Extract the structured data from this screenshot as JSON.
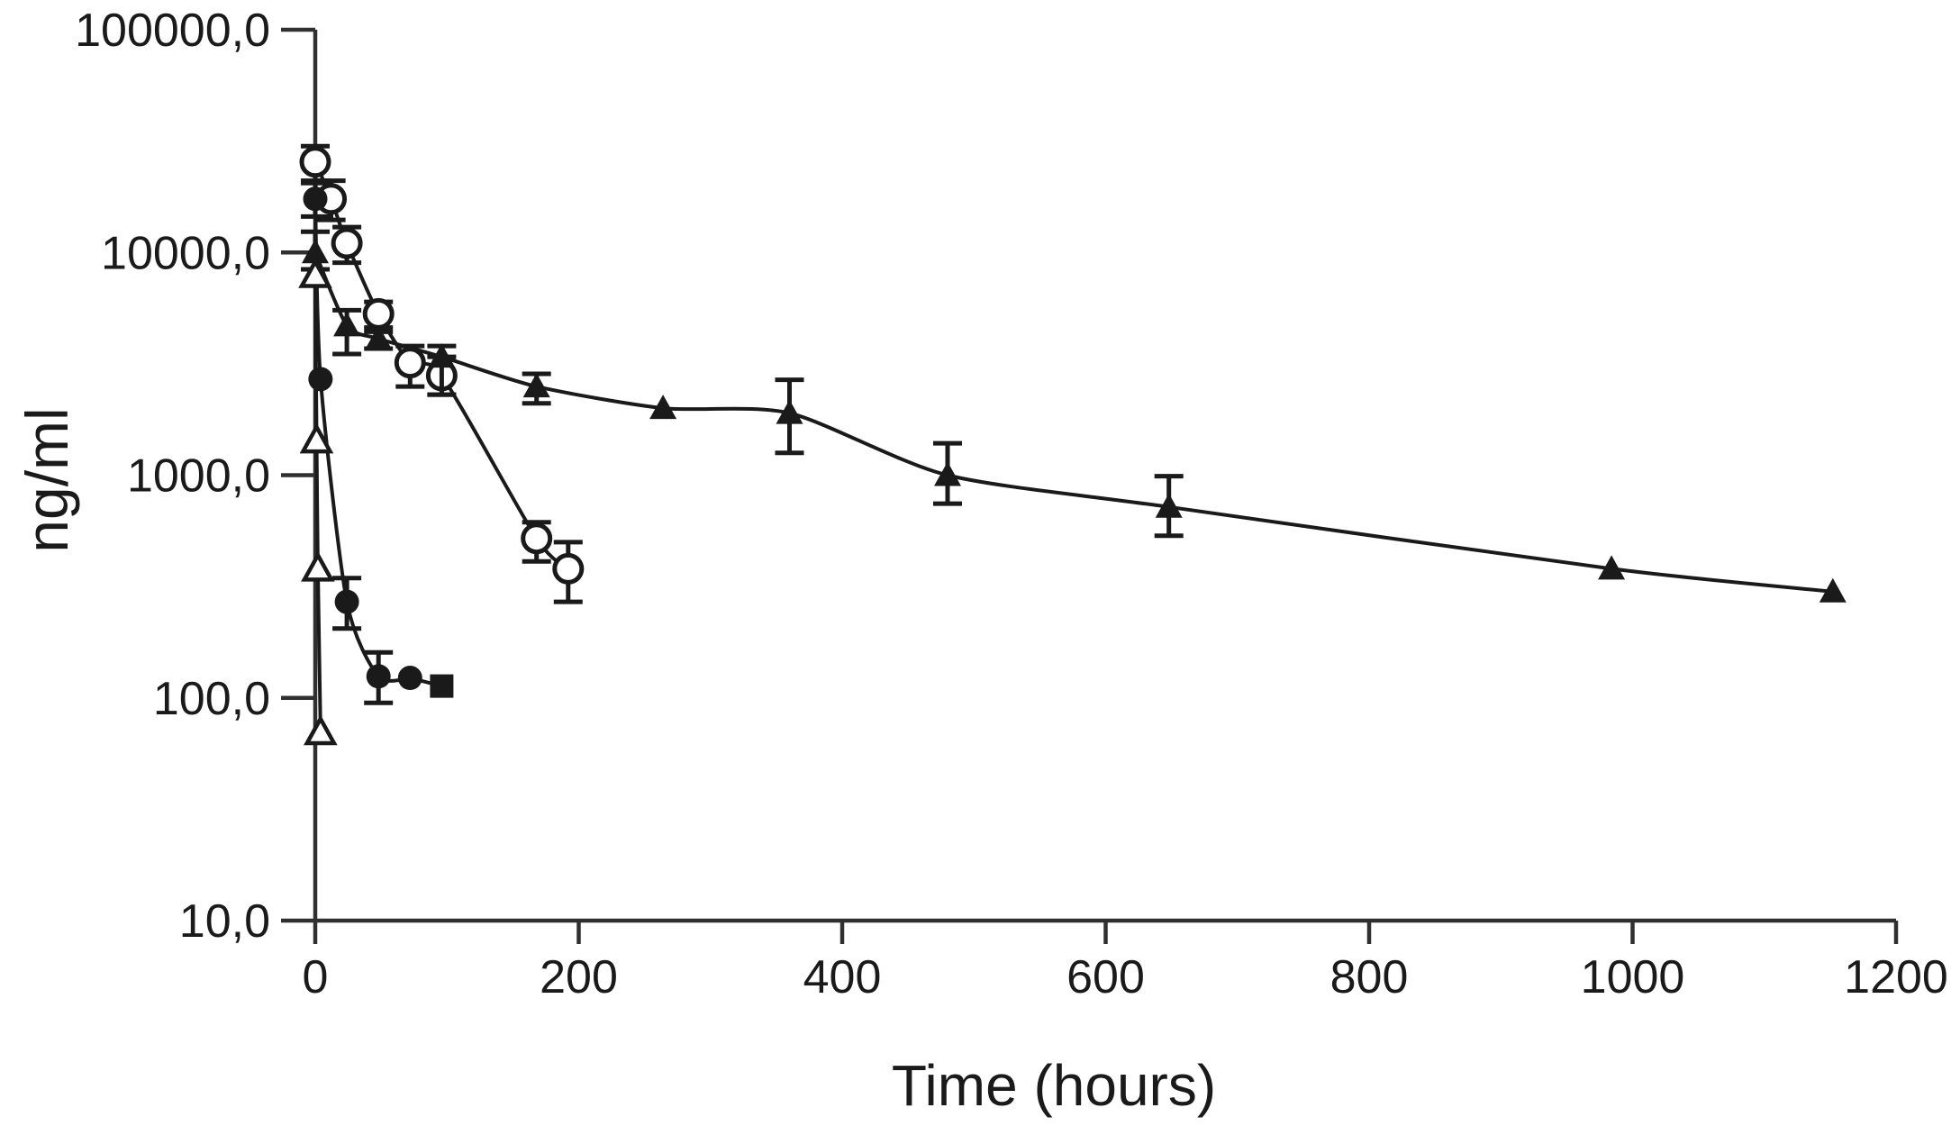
{
  "figure": {
    "title": "",
    "background": "#ffffff",
    "ink_color": "#1a1a1a",
    "axis_color": "#303030"
  },
  "chart_data": {
    "type": "line",
    "title": "",
    "xlabel": "Time (hours)",
    "ylabel": "ng/ml",
    "x_axis": {
      "label": "Time (hours)",
      "scale": "linear",
      "min": 0,
      "max": 1200,
      "ticks": [
        0,
        200,
        400,
        600,
        800,
        1000,
        1200
      ]
    },
    "y_axis": {
      "label": "ng/ml",
      "scale": "log",
      "min": 10,
      "max": 100000,
      "tick_values": [
        100000,
        10000,
        1000,
        100,
        10
      ],
      "tick_labels": [
        "100000,0",
        "10000,0",
        "1000,0",
        "100,0",
        "10,0"
      ]
    },
    "grid": false,
    "legend": "none",
    "series": [
      {
        "name": "open-circle",
        "marker": "circle-open",
        "points": [
          {
            "t": 0,
            "v": 25500,
            "lo": 21000,
            "hi": 30000
          },
          {
            "t": 12,
            "v": 17400,
            "lo": 14000,
            "hi": 21000
          },
          {
            "t": 24,
            "v": 11000,
            "lo": 9000,
            "hi": 13000
          },
          {
            "t": 48,
            "v": 5300,
            "lo": 4400,
            "hi": 6000
          },
          {
            "t": 72,
            "v": 3200,
            "lo": 2500,
            "hi": 3800
          },
          {
            "t": 96,
            "v": 2800,
            "lo": 2300,
            "hi": 3400
          },
          {
            "t": 168,
            "v": 520,
            "lo": 410,
            "hi": 615
          },
          {
            "t": 192,
            "v": 380,
            "lo": 270,
            "hi": 500
          }
        ]
      },
      {
        "name": "filled-circle",
        "marker": "circle-filled",
        "points": [
          {
            "t": 0,
            "v": 17400,
            "lo": 14500,
            "hi": 20500
          },
          {
            "t": 4,
            "v": 2700
          },
          {
            "t": 24,
            "v": 270,
            "lo": 205,
            "hi": 345
          },
          {
            "t": 48,
            "v": 125,
            "lo": 95,
            "hi": 160
          },
          {
            "t": 72,
            "v": 123
          }
        ]
      },
      {
        "name": "filled-square",
        "marker": "square-filled",
        "join_previous": true,
        "points": [
          {
            "t": 96,
            "v": 113
          }
        ]
      },
      {
        "name": "filled-triangle",
        "marker": "triangle-filled",
        "points": [
          {
            "t": 0,
            "v": 10000,
            "lo": 8400,
            "hi": 12400
          },
          {
            "t": 24,
            "v": 4700,
            "lo": 3500,
            "hi": 5500
          },
          {
            "t": 48,
            "v": 4100,
            "lo": 3700,
            "hi": 4600
          },
          {
            "t": 96,
            "v": 3400,
            "lo": 2300,
            "hi": 3800
          },
          {
            "t": 168,
            "v": 2500,
            "lo": 2100,
            "hi": 2850
          },
          {
            "t": 264,
            "v": 2000
          },
          {
            "t": 360,
            "v": 1900,
            "lo": 1260,
            "hi": 2680
          },
          {
            "t": 480,
            "v": 1000,
            "lo": 745,
            "hi": 1390
          },
          {
            "t": 648,
            "v": 720,
            "lo": 535,
            "hi": 990
          },
          {
            "t": 984,
            "v": 380
          },
          {
            "t": 1152,
            "v": 300
          }
        ]
      },
      {
        "name": "open-triangle",
        "marker": "triangle-open",
        "points": [
          {
            "t": 0,
            "v": 7900
          },
          {
            "t": 1,
            "v": 1430
          },
          {
            "t": 2,
            "v": 380
          },
          {
            "t": 4,
            "v": 70
          }
        ]
      }
    ]
  }
}
